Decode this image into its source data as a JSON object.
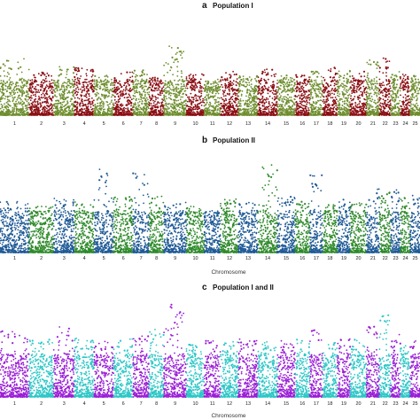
{
  "figure": {
    "panels": [
      {
        "letter": "a",
        "title": "Population I",
        "xlabel": "",
        "colors": [
          "#6f8e2e",
          "#8b0f14"
        ]
      },
      {
        "letter": "b",
        "title": "Population II",
        "xlabel": "Chromosome",
        "colors": [
          "#1f5a96",
          "#2f8a2b"
        ]
      },
      {
        "letter": "c",
        "title": "Population I and II",
        "xlabel": "Chromosome",
        "colors": [
          "#9a1ed6",
          "#2cc7c6"
        ]
      }
    ]
  },
  "chart_data": [
    {
      "type": "scatter",
      "subtype": "manhattan",
      "title": "Population I",
      "panel_letter": "a",
      "xlabel": "",
      "ylabel": "",
      "categories": [
        "1",
        "2",
        "3",
        "4",
        "5",
        "6",
        "7",
        "8",
        "9",
        "10",
        "11",
        "12",
        "13",
        "14",
        "15",
        "16",
        "17",
        "18",
        "19",
        "20",
        "21",
        "22",
        "23",
        "24",
        "25"
      ],
      "chromosome_widths": [
        9,
        7.5,
        6.5,
        6,
        6,
        6,
        5,
        4.5,
        7,
        5.5,
        5,
        5.5,
        6,
        6,
        5.5,
        4.5,
        4,
        4.5,
        4,
        5,
        4,
        3.5,
        3,
        3,
        3
      ],
      "series_colors": [
        "#6f8e2e",
        "#8b0f14"
      ],
      "chromosome_peaks": [
        0.72,
        0.55,
        0.62,
        0.6,
        0.5,
        0.55,
        0.58,
        0.48,
        0.88,
        0.52,
        0.4,
        0.55,
        0.5,
        0.58,
        0.5,
        0.52,
        0.55,
        0.6,
        0.57,
        0.55,
        0.7,
        0.74,
        0.55,
        0.52,
        0.5
      ],
      "grid": false
    },
    {
      "type": "scatter",
      "subtype": "manhattan",
      "title": "Population II",
      "panel_letter": "b",
      "xlabel": "Chromosome",
      "ylabel": "",
      "categories": [
        "1",
        "2",
        "3",
        "4",
        "5",
        "6",
        "7",
        "8",
        "9",
        "10",
        "11",
        "12",
        "13",
        "14",
        "15",
        "16",
        "17",
        "18",
        "19",
        "20",
        "21",
        "22",
        "23",
        "24",
        "25"
      ],
      "chromosome_widths": [
        9,
        7.5,
        6.5,
        6,
        6,
        6,
        5,
        4.5,
        7,
        5.5,
        5,
        5.5,
        6,
        6,
        5.5,
        4.5,
        4,
        4.5,
        4,
        5,
        4,
        3.5,
        3,
        3,
        3
      ],
      "series_colors": [
        "#1f5a96",
        "#2f8a2b"
      ],
      "chromosome_peaks": [
        0.55,
        0.5,
        0.6,
        0.55,
        0.92,
        0.6,
        0.9,
        0.62,
        0.55,
        0.5,
        0.45,
        0.58,
        0.55,
        0.95,
        0.6,
        0.55,
        0.85,
        0.55,
        0.6,
        0.55,
        0.7,
        0.65,
        0.68,
        0.6,
        0.62
      ],
      "grid": false
    },
    {
      "type": "scatter",
      "subtype": "manhattan",
      "title": "Population I and II",
      "panel_letter": "c",
      "xlabel": "Chromosome",
      "ylabel": "",
      "categories": [
        "1",
        "2",
        "3",
        "4",
        "5",
        "6",
        "7",
        "8",
        "9",
        "10",
        "11",
        "12",
        "13",
        "14",
        "15",
        "16",
        "17",
        "18",
        "19",
        "20",
        "21",
        "22",
        "23",
        "24",
        "25"
      ],
      "chromosome_widths": [
        9,
        7.5,
        6.5,
        6,
        6,
        6,
        5,
        4.5,
        7,
        5.5,
        5,
        5.5,
        6,
        6,
        5.5,
        4.5,
        4,
        4.5,
        4,
        5,
        4,
        3.5,
        3,
        3,
        3
      ],
      "series_colors": [
        "#9a1ed6",
        "#2cc7c6"
      ],
      "chromosome_peaks": [
        0.7,
        0.6,
        0.75,
        0.62,
        0.6,
        0.62,
        0.68,
        0.72,
        0.97,
        0.55,
        0.6,
        0.58,
        0.62,
        0.58,
        0.6,
        0.62,
        0.7,
        0.58,
        0.62,
        0.6,
        0.74,
        0.88,
        0.66,
        0.55,
        0.6
      ],
      "grid": false
    }
  ]
}
